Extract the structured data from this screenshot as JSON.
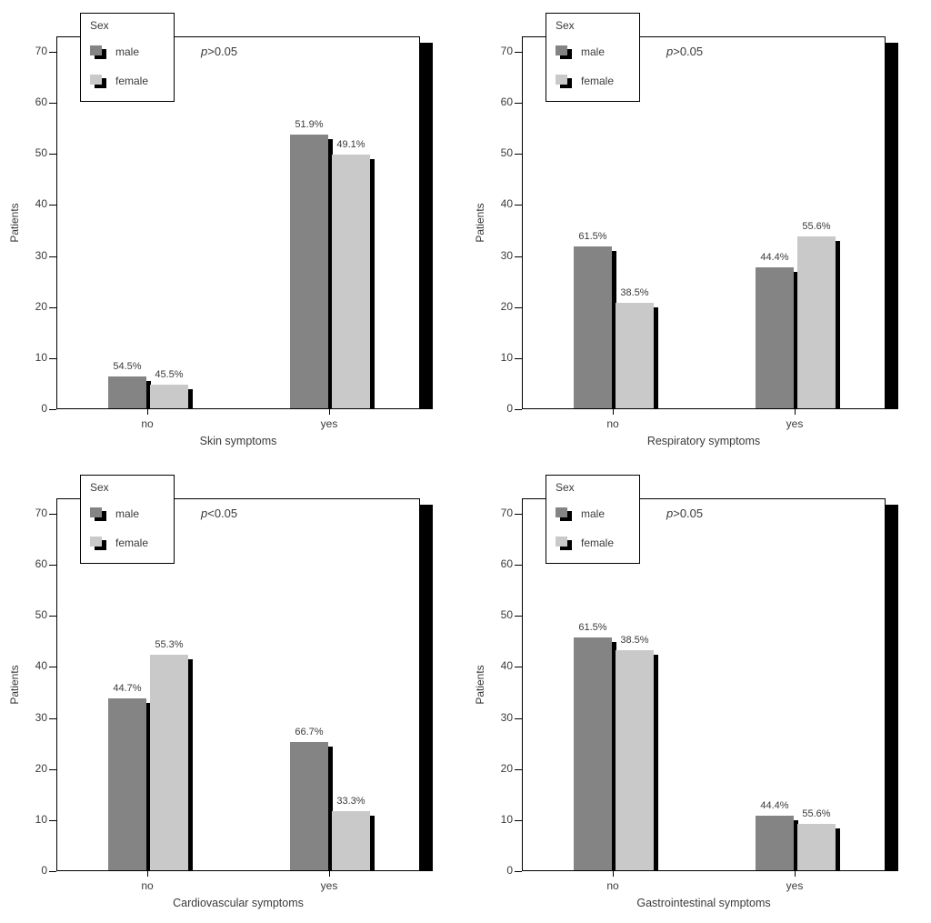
{
  "figure": {
    "background": "#ffffff",
    "text_color": "#3a3a3a",
    "axis_color": "#000000",
    "shadow_color": "#000000",
    "male_color": "#848484",
    "female_color": "#c9c9c9"
  },
  "chart_data": [
    {
      "type": "bar",
      "position": "top-left",
      "title": "",
      "xlabel": "Skin symptoms",
      "ylabel": "Patients",
      "p_annotation": "p>0.05",
      "legend": {
        "title": "Sex",
        "position": "top-left",
        "entries": [
          "male",
          "female"
        ]
      },
      "ylim": [
        0,
        70
      ],
      "yticks": [
        0,
        10,
        20,
        30,
        40,
        50,
        60,
        70
      ],
      "categories": [
        "no",
        "yes"
      ],
      "series": [
        {
          "name": "male",
          "values": [
            6.5,
            54
          ],
          "value_labels": [
            "54.5%",
            "51.9%"
          ]
        },
        {
          "name": "female",
          "values": [
            5,
            50
          ],
          "value_labels": [
            "45.5%",
            "49.1%"
          ]
        }
      ]
    },
    {
      "type": "bar",
      "position": "top-right",
      "title": "",
      "xlabel": "Respiratory symptoms",
      "ylabel": "Patients",
      "p_annotation": "p>0.05",
      "legend": {
        "title": "Sex",
        "position": "top-left",
        "entries": [
          "male",
          "female"
        ]
      },
      "ylim": [
        0,
        70
      ],
      "yticks": [
        0,
        10,
        20,
        30,
        40,
        50,
        60,
        70
      ],
      "categories": [
        "no",
        "yes"
      ],
      "series": [
        {
          "name": "male",
          "values": [
            32,
            28
          ],
          "value_labels": [
            "61.5%",
            "44.4%"
          ]
        },
        {
          "name": "female",
          "values": [
            21,
            34
          ],
          "value_labels": [
            "38.5%",
            "55.6%"
          ]
        }
      ]
    },
    {
      "type": "bar",
      "position": "bottom-left",
      "title": "",
      "xlabel": "Cardiovascular symptoms",
      "ylabel": "Patients",
      "p_annotation": "p<0.05",
      "legend": {
        "title": "Sex",
        "position": "top-left",
        "entries": [
          "male",
          "female"
        ]
      },
      "ylim": [
        0,
        70
      ],
      "yticks": [
        0,
        10,
        20,
        30,
        40,
        50,
        60,
        70
      ],
      "categories": [
        "no",
        "yes"
      ],
      "series": [
        {
          "name": "male",
          "values": [
            34,
            25.5
          ],
          "value_labels": [
            "44.7%",
            "66.7%"
          ]
        },
        {
          "name": "female",
          "values": [
            42.5,
            12
          ],
          "value_labels": [
            "55.3%",
            "33.3%"
          ]
        }
      ]
    },
    {
      "type": "bar",
      "position": "bottom-right",
      "title": "",
      "xlabel": "Gastrointestinal symptoms",
      "ylabel": "Patients",
      "p_annotation": "p>0.05",
      "legend": {
        "title": "Sex",
        "position": "top-left",
        "entries": [
          "male",
          "female"
        ]
      },
      "ylim": [
        0,
        70
      ],
      "yticks": [
        0,
        10,
        20,
        30,
        40,
        50,
        60,
        70
      ],
      "categories": [
        "no",
        "yes"
      ],
      "series": [
        {
          "name": "male",
          "values": [
            46,
            11
          ],
          "value_labels": [
            "61.5%",
            "44.4%"
          ]
        },
        {
          "name": "female",
          "values": [
            43.5,
            9.5
          ],
          "value_labels": [
            "38.5%",
            "55.6%"
          ]
        }
      ]
    }
  ]
}
